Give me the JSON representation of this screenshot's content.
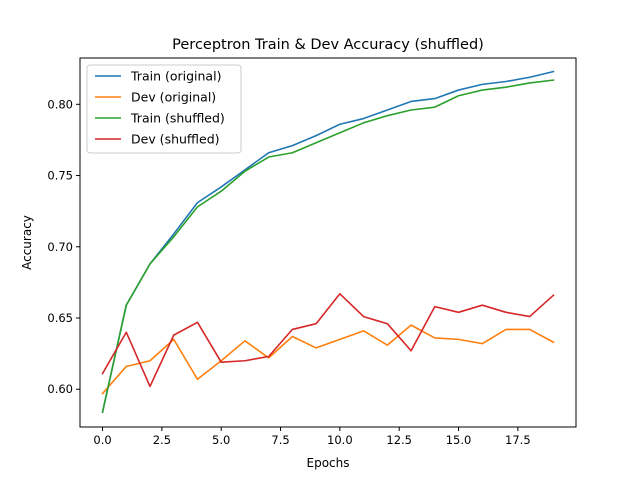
{
  "chart_data": {
    "type": "line",
    "title": "Perceptron Train & Dev Accuracy (shuffled)",
    "xlabel": "Epochs",
    "ylabel": "Accuracy",
    "xlim": [
      -0.95,
      19.95
    ],
    "ylim": [
      0.5735,
      0.8325
    ],
    "xticks": [
      0.0,
      2.5,
      5.0,
      7.5,
      10.0,
      12.5,
      15.0,
      17.5
    ],
    "xtick_labels": [
      "0.0",
      "2.5",
      "5.0",
      "7.5",
      "10.0",
      "12.5",
      "15.0",
      "17.5"
    ],
    "yticks": [
      0.6,
      0.65,
      0.7,
      0.75,
      0.8
    ],
    "ytick_labels": [
      "0.60",
      "0.65",
      "0.70",
      "0.75",
      "0.80"
    ],
    "grid": false,
    "legend_position": "top-left",
    "x": [
      0,
      1,
      2,
      3,
      4,
      5,
      6,
      7,
      8,
      9,
      10,
      11,
      12,
      13,
      14,
      15,
      16,
      17,
      18,
      19
    ],
    "series": [
      {
        "name": "Train (original)",
        "color": "#1f77b4",
        "values": [
          0.584,
          0.659,
          0.688,
          0.709,
          0.731,
          0.742,
          0.754,
          0.766,
          0.771,
          0.778,
          0.786,
          0.79,
          0.796,
          0.802,
          0.804,
          0.81,
          0.814,
          0.816,
          0.819,
          0.823
        ]
      },
      {
        "name": "Dev (original)",
        "color": "#ff7f0e",
        "values": [
          0.597,
          0.616,
          0.62,
          0.635,
          0.607,
          0.62,
          0.634,
          0.622,
          0.637,
          0.629,
          0.635,
          0.641,
          0.631,
          0.645,
          0.636,
          0.635,
          0.632,
          0.642,
          0.642,
          0.633
        ]
      },
      {
        "name": "Train (shuffled)",
        "color": "#2ca02c",
        "values": [
          0.584,
          0.659,
          0.688,
          0.707,
          0.728,
          0.739,
          0.753,
          0.763,
          0.766,
          0.773,
          0.78,
          0.787,
          0.792,
          0.796,
          0.798,
          0.806,
          0.81,
          0.812,
          0.815,
          0.817
        ]
      },
      {
        "name": "Dev (shuffled)",
        "color": "#d62728",
        "values": [
          0.611,
          0.64,
          0.602,
          0.638,
          0.647,
          0.619,
          0.62,
          0.623,
          0.642,
          0.646,
          0.667,
          0.651,
          0.646,
          0.627,
          0.658,
          0.654,
          0.659,
          0.654,
          0.651,
          0.666
        ]
      }
    ]
  }
}
